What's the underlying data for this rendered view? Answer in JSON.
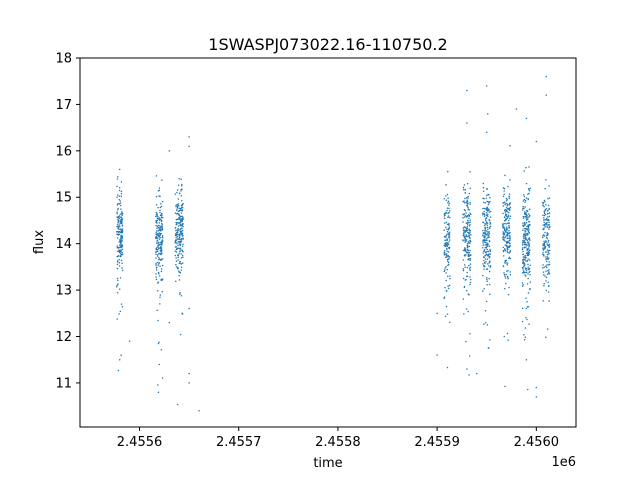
{
  "chart_data": {
    "type": "scatter",
    "title": "1SWASPJ073022.16-110750.2",
    "xlabel": "time",
    "ylabel": "flux",
    "x_offset_label": "1e6",
    "x_ticks": [
      2.4556,
      2.4557,
      2.4558,
      2.4559,
      2.456
    ],
    "x_tick_labels": [
      "2.4556",
      "2.4557",
      "2.4558",
      "2.4559",
      "2.4560"
    ],
    "y_ticks": [
      11,
      12,
      13,
      14,
      15,
      16,
      17,
      18
    ],
    "y_tick_labels": [
      "11",
      "12",
      "13",
      "14",
      "15",
      "16",
      "17",
      "18"
    ],
    "xlim": [
      2.45554,
      2.45604
    ],
    "ylim": [
      10.05,
      18.0
    ],
    "grid": false,
    "marker_color": "#1f77b4",
    "clusters": [
      {
        "x_center": 2.45558,
        "x_width": 6e-06,
        "y_median": 14.3,
        "y_spread": 0.45,
        "n": 180
      },
      {
        "x_center": 2.45562,
        "x_width": 7e-06,
        "y_median": 14.1,
        "y_spread": 0.45,
        "n": 200
      },
      {
        "x_center": 2.45564,
        "x_width": 8e-06,
        "y_median": 14.3,
        "y_spread": 0.45,
        "n": 220
      },
      {
        "x_center": 2.45591,
        "x_width": 6e-06,
        "y_median": 14.1,
        "y_spread": 0.5,
        "n": 130
      },
      {
        "x_center": 2.45593,
        "x_width": 8e-06,
        "y_median": 14.2,
        "y_spread": 0.5,
        "n": 200
      },
      {
        "x_center": 2.45595,
        "x_width": 8e-06,
        "y_median": 14.2,
        "y_spread": 0.5,
        "n": 200
      },
      {
        "x_center": 2.45597,
        "x_width": 8e-06,
        "y_median": 14.3,
        "y_spread": 0.5,
        "n": 200
      },
      {
        "x_center": 2.45599,
        "x_width": 8e-06,
        "y_median": 14.1,
        "y_spread": 0.55,
        "n": 240
      },
      {
        "x_center": 2.45601,
        "x_width": 7e-06,
        "y_median": 14.2,
        "y_spread": 0.5,
        "n": 160
      }
    ],
    "points": [
      {
        "x": 2.45558,
        "y": 15.6
      },
      {
        "x": 2.45558,
        "y": 11.5
      },
      {
        "x": 2.45559,
        "y": 11.9
      },
      {
        "x": 2.45562,
        "y": 11.4
      },
      {
        "x": 2.45562,
        "y": 15.2
      },
      {
        "x": 2.45563,
        "y": 12.3
      },
      {
        "x": 2.45563,
        "y": 16.0
      },
      {
        "x": 2.45564,
        "y": 15.4
      },
      {
        "x": 2.45565,
        "y": 16.1
      },
      {
        "x": 2.45565,
        "y": 16.3
      },
      {
        "x": 2.45565,
        "y": 12.6
      },
      {
        "x": 2.45565,
        "y": 11.2
      },
      {
        "x": 2.45565,
        "y": 11.0
      },
      {
        "x": 2.45566,
        "y": 10.4
      },
      {
        "x": 2.4559,
        "y": 11.6
      },
      {
        "x": 2.4559,
        "y": 12.5
      },
      {
        "x": 2.45593,
        "y": 16.6
      },
      {
        "x": 2.45593,
        "y": 17.3
      },
      {
        "x": 2.45593,
        "y": 11.3
      },
      {
        "x": 2.45594,
        "y": 11.2
      },
      {
        "x": 2.45595,
        "y": 17.4
      },
      {
        "x": 2.45595,
        "y": 16.4
      },
      {
        "x": 2.45598,
        "y": 16.9
      },
      {
        "x": 2.45599,
        "y": 16.7
      },
      {
        "x": 2.45599,
        "y": 11.5
      },
      {
        "x": 2.456,
        "y": 16.2
      },
      {
        "x": 2.456,
        "y": 10.9
      },
      {
        "x": 2.456,
        "y": 10.7
      },
      {
        "x": 2.45601,
        "y": 17.6
      },
      {
        "x": 2.45601,
        "y": 17.2
      }
    ]
  }
}
